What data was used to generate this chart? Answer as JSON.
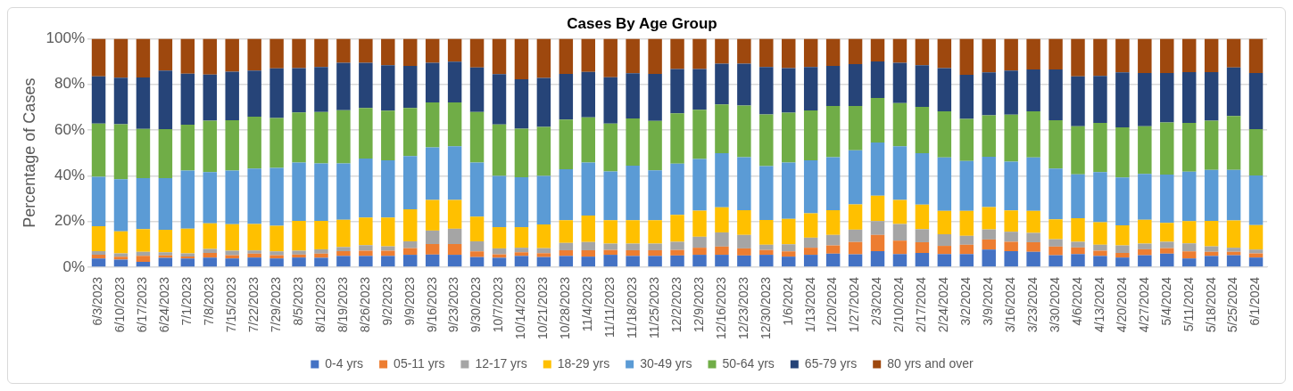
{
  "chart_data": {
    "type": "bar",
    "title": "Cases By Age Group",
    "ylabel": "Percentage of Cases",
    "stacked": true,
    "grid": "y",
    "legend": "bottom",
    "ylim": [
      0,
      100
    ],
    "yticks": [
      {
        "value": 0,
        "label": "0%"
      },
      {
        "value": 20,
        "label": "20%"
      },
      {
        "value": 40,
        "label": "40%"
      },
      {
        "value": 60,
        "label": "60%"
      },
      {
        "value": 80,
        "label": "80%"
      },
      {
        "value": 100,
        "label": "100%"
      }
    ],
    "categories": [
      "6/3/2023",
      "6/10/2023",
      "6/17/2023",
      "6/24/2023",
      "7/1/2023",
      "7/8/2023",
      "7/15/2023",
      "7/22/2023",
      "7/29/2023",
      "8/5/2023",
      "8/12/2023",
      "8/19/2023",
      "8/26/2023",
      "9/2/2023",
      "9/9/2023",
      "9/16/2023",
      "9/23/2023",
      "9/30/2023",
      "10/7/2023",
      "10/14/2023",
      "10/21/2023",
      "10/28/2023",
      "11/4/2023",
      "11/11/2023",
      "11/18/2023",
      "11/25/2023",
      "12/2/2023",
      "12/9/2023",
      "12/16/2023",
      "12/23/2023",
      "12/30/2023",
      "1/6/2024",
      "1/13/2024",
      "1/20/2024",
      "1/27/2024",
      "2/3/2024",
      "2/10/2024",
      "2/17/2024",
      "2/24/2024",
      "3/2/2024",
      "3/9/2024",
      "3/16/2024",
      "3/23/2024",
      "3/30/2024",
      "4/6/2024",
      "4/13/2024",
      "4/20/2024",
      "4/27/2024",
      "5/4/2024",
      "5/11/2024",
      "5/18/2024",
      "5/25/2024",
      "6/1/2024"
    ],
    "series": [
      {
        "name": "0-4 yrs",
        "color": "#4472c4",
        "values": [
          3.8,
          3.3,
          2.3,
          4.1,
          3.8,
          4.2,
          3.8,
          4.2,
          3.8,
          4.2,
          4.1,
          4.9,
          4.9,
          4.9,
          5.4,
          5.5,
          5.4,
          4.4,
          4.1,
          4.9,
          4.4,
          4.9,
          4.6,
          5.4,
          4.9,
          4.9,
          5.1,
          5.4,
          5.4,
          5.1,
          5.4,
          4.6,
          5.4,
          5.9,
          5.6,
          7.0,
          5.7,
          6.2,
          5.7,
          5.7,
          7.7,
          7.0,
          6.7,
          5.2,
          5.7,
          4.9,
          4.2,
          5.2,
          5.9,
          3.8,
          4.9,
          5.2,
          4.2
        ]
      },
      {
        "name": "05-11 yrs",
        "color": "#ed7d31",
        "values": [
          1.6,
          1.3,
          2.6,
          1.0,
          0.9,
          2.0,
          1.4,
          1.7,
          1.4,
          1.3,
          1.8,
          2.1,
          2.3,
          2.3,
          2.9,
          4.6,
          4.7,
          2.5,
          1.5,
          1.6,
          1.7,
          2.5,
          2.8,
          2.1,
          2.5,
          2.5,
          2.4,
          3.1,
          3.6,
          3.1,
          2.1,
          2.3,
          3.1,
          3.6,
          5.4,
          7.1,
          5.9,
          4.7,
          3.6,
          4.1,
          4.4,
          4.1,
          4.2,
          3.8,
          2.9,
          2.3,
          2.0,
          2.6,
          2.4,
          3.1,
          1.8,
          1.5,
          1.8
        ]
      },
      {
        "name": "12-17 yrs",
        "color": "#a5a5a5",
        "values": [
          1.6,
          1.4,
          1.8,
          1.4,
          1.3,
          1.8,
          2.0,
          1.4,
          1.7,
          1.7,
          1.9,
          1.8,
          2.4,
          1.9,
          3.0,
          5.9,
          6.7,
          4.4,
          2.6,
          2.0,
          2.2,
          3.2,
          3.6,
          2.8,
          2.9,
          2.9,
          3.6,
          4.8,
          6.2,
          5.9,
          2.3,
          3.1,
          4.4,
          4.6,
          5.4,
          6.0,
          7.3,
          5.7,
          5.1,
          3.9,
          4.4,
          4.4,
          4.1,
          3.2,
          2.5,
          2.6,
          3.3,
          2.5,
          2.8,
          3.5,
          2.4,
          1.8,
          1.7
        ]
      },
      {
        "name": "18-29 yrs",
        "color": "#ffc000",
        "values": [
          10.9,
          9.7,
          9.9,
          9.8,
          10.8,
          11.2,
          11.6,
          11.6,
          11.2,
          13.0,
          12.4,
          11.9,
          12.1,
          12.6,
          14.0,
          13.4,
          12.6,
          10.8,
          9.3,
          9.0,
          10.4,
          9.9,
          11.6,
          10.2,
          10.2,
          10.2,
          11.8,
          11.4,
          11.0,
          10.8,
          10.8,
          11.1,
          10.7,
          10.8,
          11.1,
          11.2,
          10.5,
          10.8,
          10.2,
          10.9,
          9.8,
          9.3,
          9.6,
          8.7,
          10.3,
          9.9,
          8.8,
          10.4,
          8.3,
          9.7,
          11.1,
          11.9,
          10.7
        ]
      },
      {
        "name": "30-49 yrs",
        "color": "#5b9bd5",
        "values": [
          21.6,
          22.8,
          22.4,
          22.7,
          25.5,
          22.4,
          23.5,
          24.2,
          25.3,
          25.6,
          25.2,
          24.7,
          25.8,
          25.1,
          23.3,
          23.0,
          23.5,
          23.7,
          22.4,
          21.8,
          21.2,
          22.4,
          23.2,
          21.4,
          23.9,
          21.9,
          22.4,
          22.6,
          23.7,
          23.2,
          23.6,
          24.7,
          23.2,
          23.2,
          23.6,
          23.2,
          23.5,
          22.5,
          23.4,
          21.9,
          22.0,
          21.4,
          23.4,
          22.2,
          19.2,
          21.9,
          20.9,
          20.1,
          21.1,
          21.7,
          22.4,
          22.2,
          21.7
        ]
      },
      {
        "name": "50-64 yrs",
        "color": "#70ad47",
        "values": [
          23.3,
          24.0,
          21.5,
          21.4,
          20.0,
          22.5,
          22.0,
          22.8,
          21.9,
          21.9,
          22.5,
          23.3,
          22.2,
          21.7,
          21.1,
          19.7,
          19.2,
          22.1,
          22.5,
          21.3,
          21.5,
          21.7,
          19.8,
          20.9,
          20.7,
          21.6,
          22.0,
          21.6,
          21.3,
          22.6,
          22.6,
          21.8,
          21.8,
          22.4,
          19.4,
          19.5,
          18.9,
          20.2,
          20.2,
          18.4,
          18.1,
          20.5,
          20.2,
          21.2,
          21.1,
          21.5,
          22.0,
          20.9,
          22.8,
          21.3,
          21.5,
          23.5,
          20.3
        ]
      },
      {
        "name": "65-79 yrs",
        "color": "#264478",
        "values": [
          20.7,
          20.4,
          22.5,
          25.6,
          22.4,
          20.2,
          21.2,
          20.1,
          21.7,
          19.4,
          19.7,
          20.7,
          19.7,
          19.9,
          18.4,
          17.3,
          17.8,
          19.5,
          22.1,
          21.6,
          21.4,
          20.0,
          19.8,
          20.3,
          19.8,
          20.6,
          19.4,
          17.8,
          17.8,
          18.3,
          20.8,
          19.5,
          19.0,
          17.6,
          18.4,
          16.0,
          17.6,
          18.3,
          18.9,
          19.3,
          18.8,
          19.3,
          18.3,
          22.2,
          21.8,
          20.6,
          24.0,
          23.3,
          21.7,
          22.2,
          21.2,
          21.3,
          24.6
        ]
      },
      {
        "name": "80 yrs and over",
        "color": "#9e480e",
        "values": [
          16.5,
          17.1,
          17.0,
          14.0,
          15.3,
          15.7,
          14.5,
          14.0,
          13.0,
          12.9,
          12.4,
          10.6,
          10.6,
          11.6,
          11.9,
          10.6,
          10.1,
          12.6,
          15.5,
          17.8,
          17.2,
          15.4,
          14.6,
          16.9,
          15.1,
          15.4,
          13.3,
          13.3,
          11.0,
          11.0,
          12.4,
          12.9,
          12.4,
          11.9,
          11.1,
          10.0,
          10.6,
          11.6,
          12.9,
          15.8,
          14.8,
          14.0,
          13.5,
          13.5,
          16.5,
          16.3,
          14.8,
          15.0,
          15.0,
          14.7,
          14.7,
          12.6,
          15.0
        ]
      }
    ]
  }
}
